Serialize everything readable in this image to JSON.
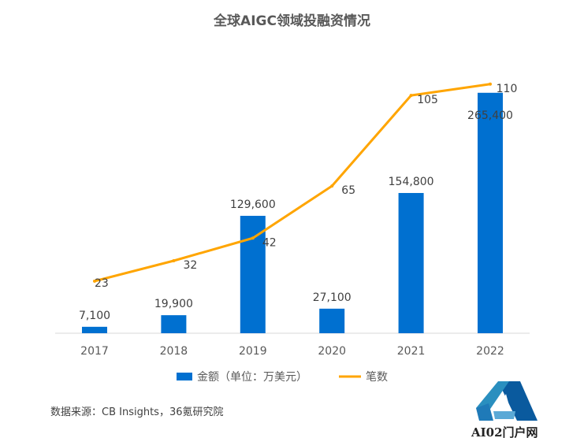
{
  "chart_data": {
    "type": "bar+line",
    "title": "全球AIGC领域投融资情况",
    "categories": [
      "2017",
      "2018",
      "2019",
      "2020",
      "2021",
      "2022"
    ],
    "series": [
      {
        "name": "金额（单位：万美元）",
        "type": "bar",
        "values": [
          7100,
          19900,
          129600,
          27100,
          154800,
          265400
        ],
        "labels": [
          "7,100",
          "19,900",
          "129,600",
          "27,100",
          "154,800",
          "265,400"
        ],
        "color": "#0070D0"
      },
      {
        "name": "笔数",
        "type": "line",
        "values": [
          23,
          32,
          42,
          65,
          105,
          110
        ],
        "labels": [
          "23",
          "32",
          "42",
          "65",
          "105",
          "110"
        ],
        "color": "#FFA500"
      }
    ],
    "ylim_bar": [
      0,
      300000
    ],
    "ylim_line": [
      0,
      120
    ],
    "grid": false,
    "legend": "bottom"
  },
  "source": "数据来源：CB Insights，36氪研究院",
  "watermark": "AI02门户网"
}
